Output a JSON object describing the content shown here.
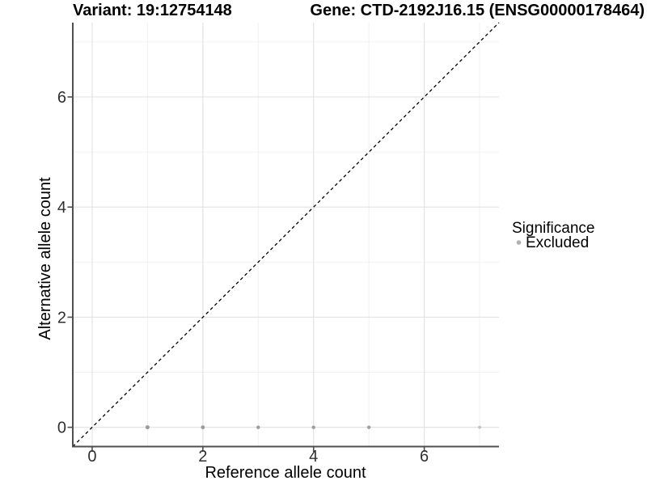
{
  "chart_data": {
    "type": "scatter",
    "title_left": "Variant: 19:12754148",
    "title_right": "Gene: CTD-2192J16.15 (ENSG00000178464)",
    "xlabel": "Reference allele count",
    "ylabel": "Alternative allele count",
    "xlim": [
      -0.35,
      7.35
    ],
    "ylim": [
      -0.35,
      7.35
    ],
    "xticks": [
      0,
      2,
      4,
      6
    ],
    "yticks": [
      0,
      2,
      4,
      6
    ],
    "minor_gridlines_x": [
      1,
      3,
      5,
      7
    ],
    "minor_gridlines_y": [
      1,
      3,
      5,
      7
    ],
    "grid": "on",
    "identity_line": {
      "style": "dashed",
      "slope": 1,
      "intercept": 0,
      "color": "#000000"
    },
    "series": [
      {
        "name": "Excluded",
        "points": [
          {
            "x": 1,
            "y": 0,
            "r": 2.5,
            "color": "#9a9a9a"
          },
          {
            "x": 2,
            "y": 0,
            "r": 2.4,
            "color": "#9a9a9a"
          },
          {
            "x": 3,
            "y": 0,
            "r": 2.2,
            "color": "#9d9d9d"
          },
          {
            "x": 4,
            "y": 0,
            "r": 2.2,
            "color": "#9d9d9d"
          },
          {
            "x": 5,
            "y": 0,
            "r": 2.2,
            "color": "#a0a0a0"
          },
          {
            "x": 7,
            "y": 0,
            "r": 1.9,
            "color": "#c0c0c0"
          }
        ]
      }
    ],
    "legend": {
      "title": "Significance",
      "position": "right",
      "items": [
        {
          "label": "Excluded",
          "marker": "circle",
          "color": "#b0b0b0"
        }
      ]
    }
  },
  "style": {
    "background": "#ffffff",
    "grid_major_color": "#e3e3e3",
    "grid_minor_color": "#f0f0f0",
    "axis_line_color": "#4f4f4f",
    "tick_label_color": "#303030",
    "title_color": "#000000",
    "point_default_color": "#9a9a9a"
  }
}
